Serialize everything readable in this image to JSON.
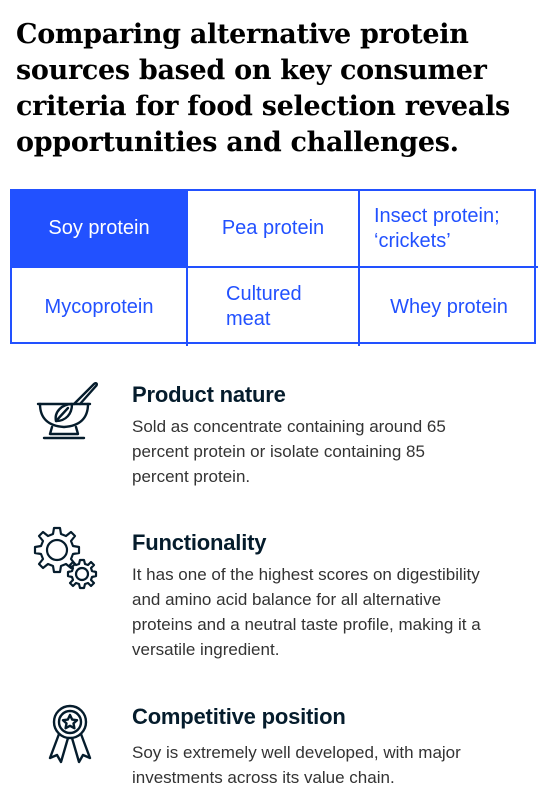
{
  "title": "Comparing alternative protein sources based on key consumer criteria for food selection reveals opportunities and challenges.",
  "colors": {
    "accent": "#2251ff",
    "text": "#051c2c"
  },
  "tabs": [
    {
      "label": "Soy protein",
      "active": true
    },
    {
      "label": "Pea protein",
      "active": false
    },
    {
      "label": "Insect protein; ‘crickets’",
      "active": false
    },
    {
      "label": "Mycoprotein",
      "active": false
    },
    {
      "label": "Cultured meat",
      "active": false
    },
    {
      "label": "Whey protein",
      "active": false
    }
  ],
  "sections": [
    {
      "icon": "mortar-pestle-leaf-icon",
      "title": "Product nature",
      "body": "Sold as concentrate containing around 65 percent protein or isolate containing 85 percent protein."
    },
    {
      "icon": "gears-icon",
      "title": "Functionality",
      "body": "It has one of the highest scores on digestibility and amino acid balance for all alternative proteins and a neutral taste profile, making it a versatile ingredient."
    },
    {
      "icon": "award-ribbon-icon",
      "title": "Competitive position",
      "body": "Soy is extremely well developed, with major investments across its value chain."
    }
  ]
}
